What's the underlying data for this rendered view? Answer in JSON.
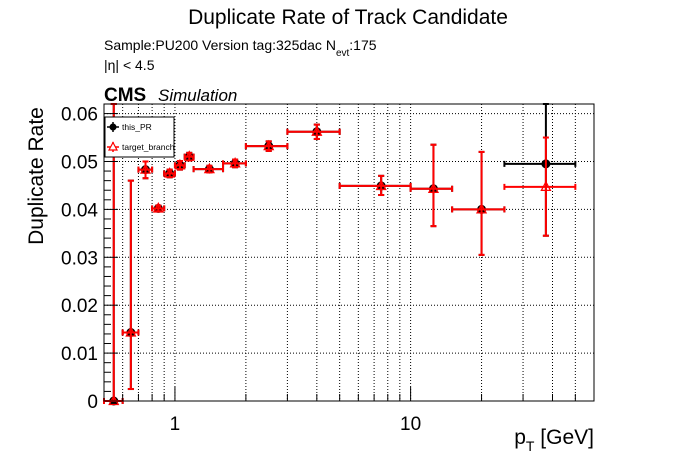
{
  "header": {
    "title": "Duplicate Rate of Track Candidate",
    "sample_line": "Sample:PU200   Version tag:325dac  N",
    "nevt_sub": "evt",
    "nevt_value": ":175",
    "eta_line": "|η| < 4.5",
    "cms_label": "CMS",
    "simulation_label": "Simulation"
  },
  "chart_data": {
    "type": "scatter",
    "title": "Duplicate Rate of Track Candidate",
    "xlabel_main": "p",
    "xlabel_sub": "T",
    "xlabel_unit": " [GeV]",
    "ylabel": "Duplicate Rate",
    "xscale": "log",
    "xlim": [
      0.5,
      60
    ],
    "ylim": [
      0,
      0.062
    ],
    "grid": true,
    "legend_position": "top-left",
    "y_ticks": [
      0,
      0.01,
      0.02,
      0.03,
      0.04,
      0.05,
      0.06
    ],
    "y_tick_labels": [
      "0",
      "0.01",
      "0.02",
      "0.03",
      "0.04",
      "0.05",
      "0.06"
    ],
    "x_major_ticks": [
      1,
      10
    ],
    "x_major_tick_labels": [
      "1",
      "10"
    ],
    "series": [
      {
        "name": "this_PR",
        "color": "#000000",
        "marker": "filled-circle",
        "points": [
          {
            "x": 0.55,
            "xlo": 0.5,
            "xhi": 0.6,
            "y": 0.0,
            "ylo": 0.0,
            "yhi": 0.062
          },
          {
            "x": 0.65,
            "xlo": 0.6,
            "xhi": 0.7,
            "y": 0.0143,
            "ylo": 0.0025,
            "yhi": 0.046
          },
          {
            "x": 0.75,
            "xlo": 0.7,
            "xhi": 0.8,
            "y": 0.0483,
            "ylo": 0.0465,
            "yhi": 0.05
          },
          {
            "x": 0.85,
            "xlo": 0.8,
            "xhi": 0.9,
            "y": 0.0402,
            "ylo": 0.0396,
            "yhi": 0.0408
          },
          {
            "x": 0.95,
            "xlo": 0.9,
            "xhi": 1.0,
            "y": 0.0475,
            "ylo": 0.0467,
            "yhi": 0.0483
          },
          {
            "x": 1.05,
            "xlo": 1.0,
            "xhi": 1.1,
            "y": 0.0492,
            "ylo": 0.0483,
            "yhi": 0.0501
          },
          {
            "x": 1.15,
            "xlo": 1.1,
            "xhi": 1.2,
            "y": 0.051,
            "ylo": 0.0502,
            "yhi": 0.0518
          },
          {
            "x": 1.4,
            "xlo": 1.2,
            "xhi": 1.6,
            "y": 0.0484,
            "ylo": 0.0477,
            "yhi": 0.0491
          },
          {
            "x": 1.8,
            "xlo": 1.6,
            "xhi": 2.0,
            "y": 0.0496,
            "ylo": 0.0488,
            "yhi": 0.0504
          },
          {
            "x": 2.5,
            "xlo": 2.0,
            "xhi": 3.0,
            "y": 0.0532,
            "ylo": 0.0522,
            "yhi": 0.0542
          },
          {
            "x": 4.0,
            "xlo": 3.0,
            "xhi": 5.0,
            "y": 0.0562,
            "ylo": 0.0547,
            "yhi": 0.0577
          },
          {
            "x": 7.5,
            "xlo": 5.0,
            "xhi": 10.0,
            "y": 0.0449,
            "ylo": 0.043,
            "yhi": 0.047
          },
          {
            "x": 12.5,
            "xlo": 10.0,
            "xhi": 15.0,
            "y": 0.0443,
            "ylo": 0.0365,
            "yhi": 0.0535
          },
          {
            "x": 20.0,
            "xlo": 15.0,
            "xhi": 25.0,
            "y": 0.04,
            "ylo": 0.0305,
            "yhi": 0.052
          },
          {
            "x": 37.5,
            "xlo": 25.0,
            "xhi": 50.0,
            "y": 0.0495,
            "ylo": 0.0345,
            "yhi": 0.062
          }
        ]
      },
      {
        "name": "target_branch",
        "color": "#ff0000",
        "marker": "open-triangle",
        "points": [
          {
            "x": 0.55,
            "xlo": 0.5,
            "xhi": 0.6,
            "y": 0.0,
            "ylo": 0.0,
            "yhi": 0.062
          },
          {
            "x": 0.65,
            "xlo": 0.6,
            "xhi": 0.7,
            "y": 0.0143,
            "ylo": 0.0025,
            "yhi": 0.046
          },
          {
            "x": 0.75,
            "xlo": 0.7,
            "xhi": 0.8,
            "y": 0.0483,
            "ylo": 0.0465,
            "yhi": 0.05
          },
          {
            "x": 0.85,
            "xlo": 0.8,
            "xhi": 0.9,
            "y": 0.0402,
            "ylo": 0.0396,
            "yhi": 0.0408
          },
          {
            "x": 0.95,
            "xlo": 0.9,
            "xhi": 1.0,
            "y": 0.0475,
            "ylo": 0.0467,
            "yhi": 0.0483
          },
          {
            "x": 1.05,
            "xlo": 1.0,
            "xhi": 1.1,
            "y": 0.0492,
            "ylo": 0.0483,
            "yhi": 0.0501
          },
          {
            "x": 1.15,
            "xlo": 1.1,
            "xhi": 1.2,
            "y": 0.051,
            "ylo": 0.0502,
            "yhi": 0.0518
          },
          {
            "x": 1.4,
            "xlo": 1.2,
            "xhi": 1.6,
            "y": 0.0484,
            "ylo": 0.0477,
            "yhi": 0.0491
          },
          {
            "x": 1.8,
            "xlo": 1.6,
            "xhi": 2.0,
            "y": 0.0496,
            "ylo": 0.0488,
            "yhi": 0.0504
          },
          {
            "x": 2.5,
            "xlo": 2.0,
            "xhi": 3.0,
            "y": 0.0532,
            "ylo": 0.0522,
            "yhi": 0.0542
          },
          {
            "x": 4.0,
            "xlo": 3.0,
            "xhi": 5.0,
            "y": 0.0562,
            "ylo": 0.0547,
            "yhi": 0.0577
          },
          {
            "x": 7.5,
            "xlo": 5.0,
            "xhi": 10.0,
            "y": 0.0449,
            "ylo": 0.043,
            "yhi": 0.047
          },
          {
            "x": 12.5,
            "xlo": 10.0,
            "xhi": 15.0,
            "y": 0.0443,
            "ylo": 0.0365,
            "yhi": 0.0535
          },
          {
            "x": 20.0,
            "xlo": 15.0,
            "xhi": 25.0,
            "y": 0.04,
            "ylo": 0.0305,
            "yhi": 0.052
          },
          {
            "x": 37.5,
            "xlo": 25.0,
            "xhi": 50.0,
            "y": 0.0447,
            "ylo": 0.0345,
            "yhi": 0.055
          }
        ]
      }
    ]
  }
}
